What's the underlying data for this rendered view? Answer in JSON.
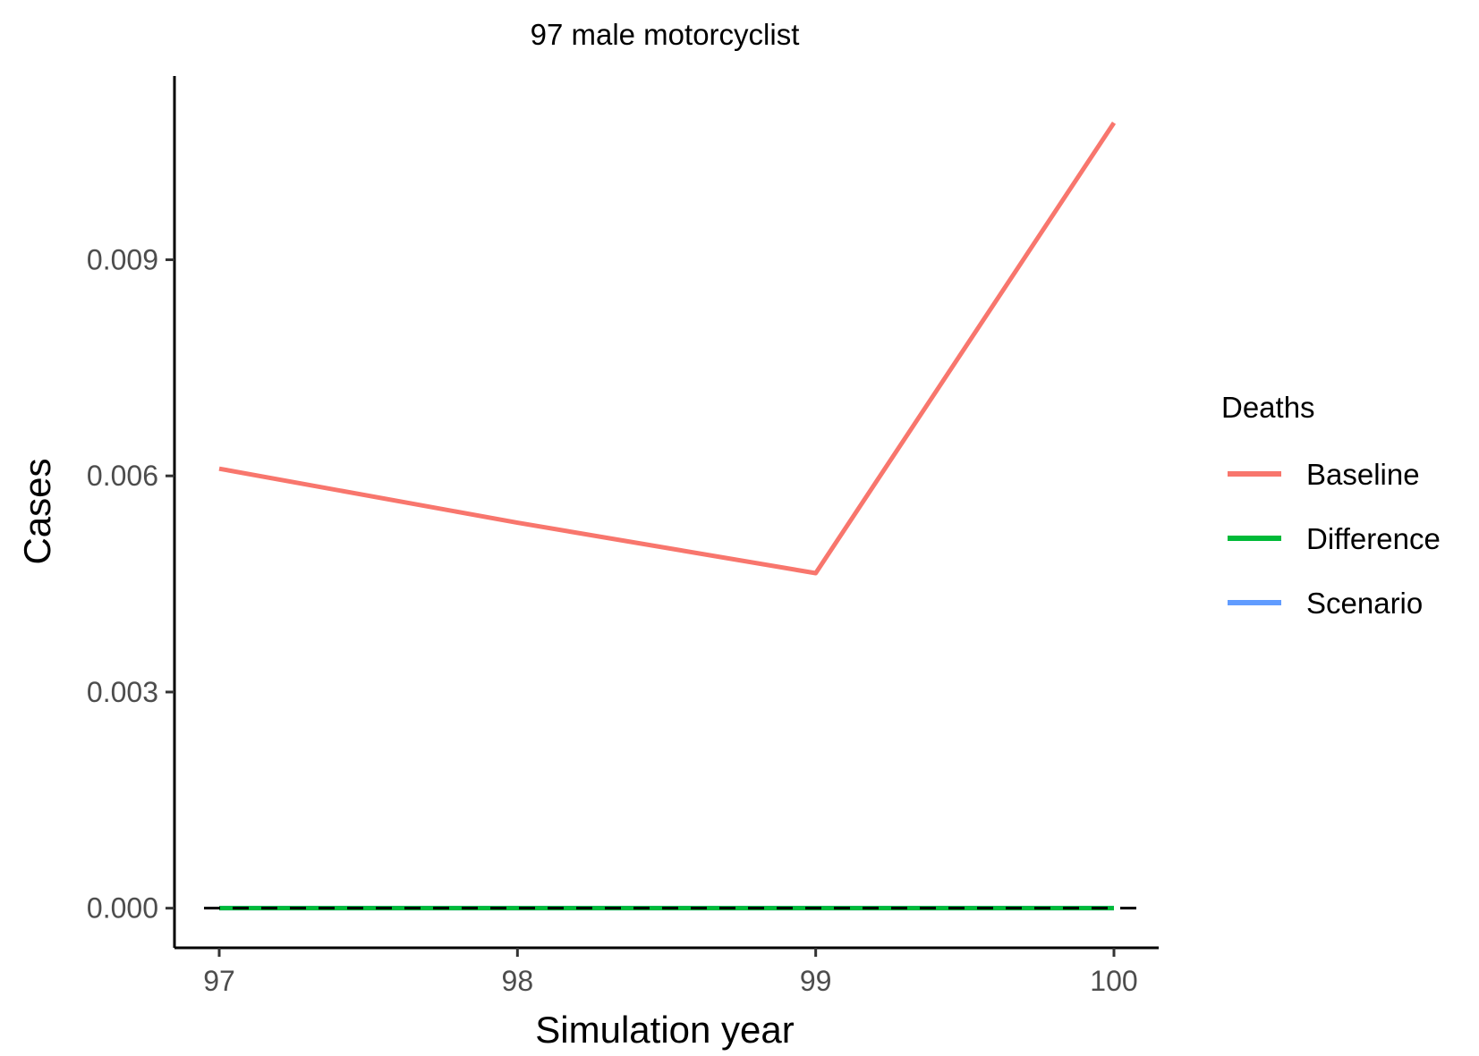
{
  "chart_data": {
    "type": "line",
    "title": "97 male motorcyclist",
    "xlabel": "Simulation year",
    "ylabel": "Cases",
    "x": [
      97,
      98,
      99,
      100
    ],
    "xticks": [
      97,
      98,
      99,
      100
    ],
    "xtick_labels": [
      "97",
      "98",
      "99",
      "100"
    ],
    "yticks": [
      0,
      0.003,
      0.006,
      0.009
    ],
    "ytick_labels": [
      "0.000",
      "0.003",
      "0.006",
      "0.009"
    ],
    "xlim": [
      96.85,
      100.15
    ],
    "ylim": [
      -0.00055,
      0.01155
    ],
    "grid": false,
    "legend": {
      "title": "Deaths",
      "position": "right"
    },
    "reference_line": {
      "y": 0,
      "style": "dashed",
      "color": "#000000"
    },
    "series": [
      {
        "name": "Baseline",
        "color": "#F8766D",
        "values": [
          0.0061,
          0.00535,
          0.00465,
          0.0109
        ]
      },
      {
        "name": "Difference",
        "color": "#00BA38",
        "values": [
          0,
          0,
          0,
          0
        ]
      },
      {
        "name": "Scenario",
        "color": "#619CFF",
        "values": [
          0,
          0,
          0,
          0
        ]
      }
    ]
  }
}
